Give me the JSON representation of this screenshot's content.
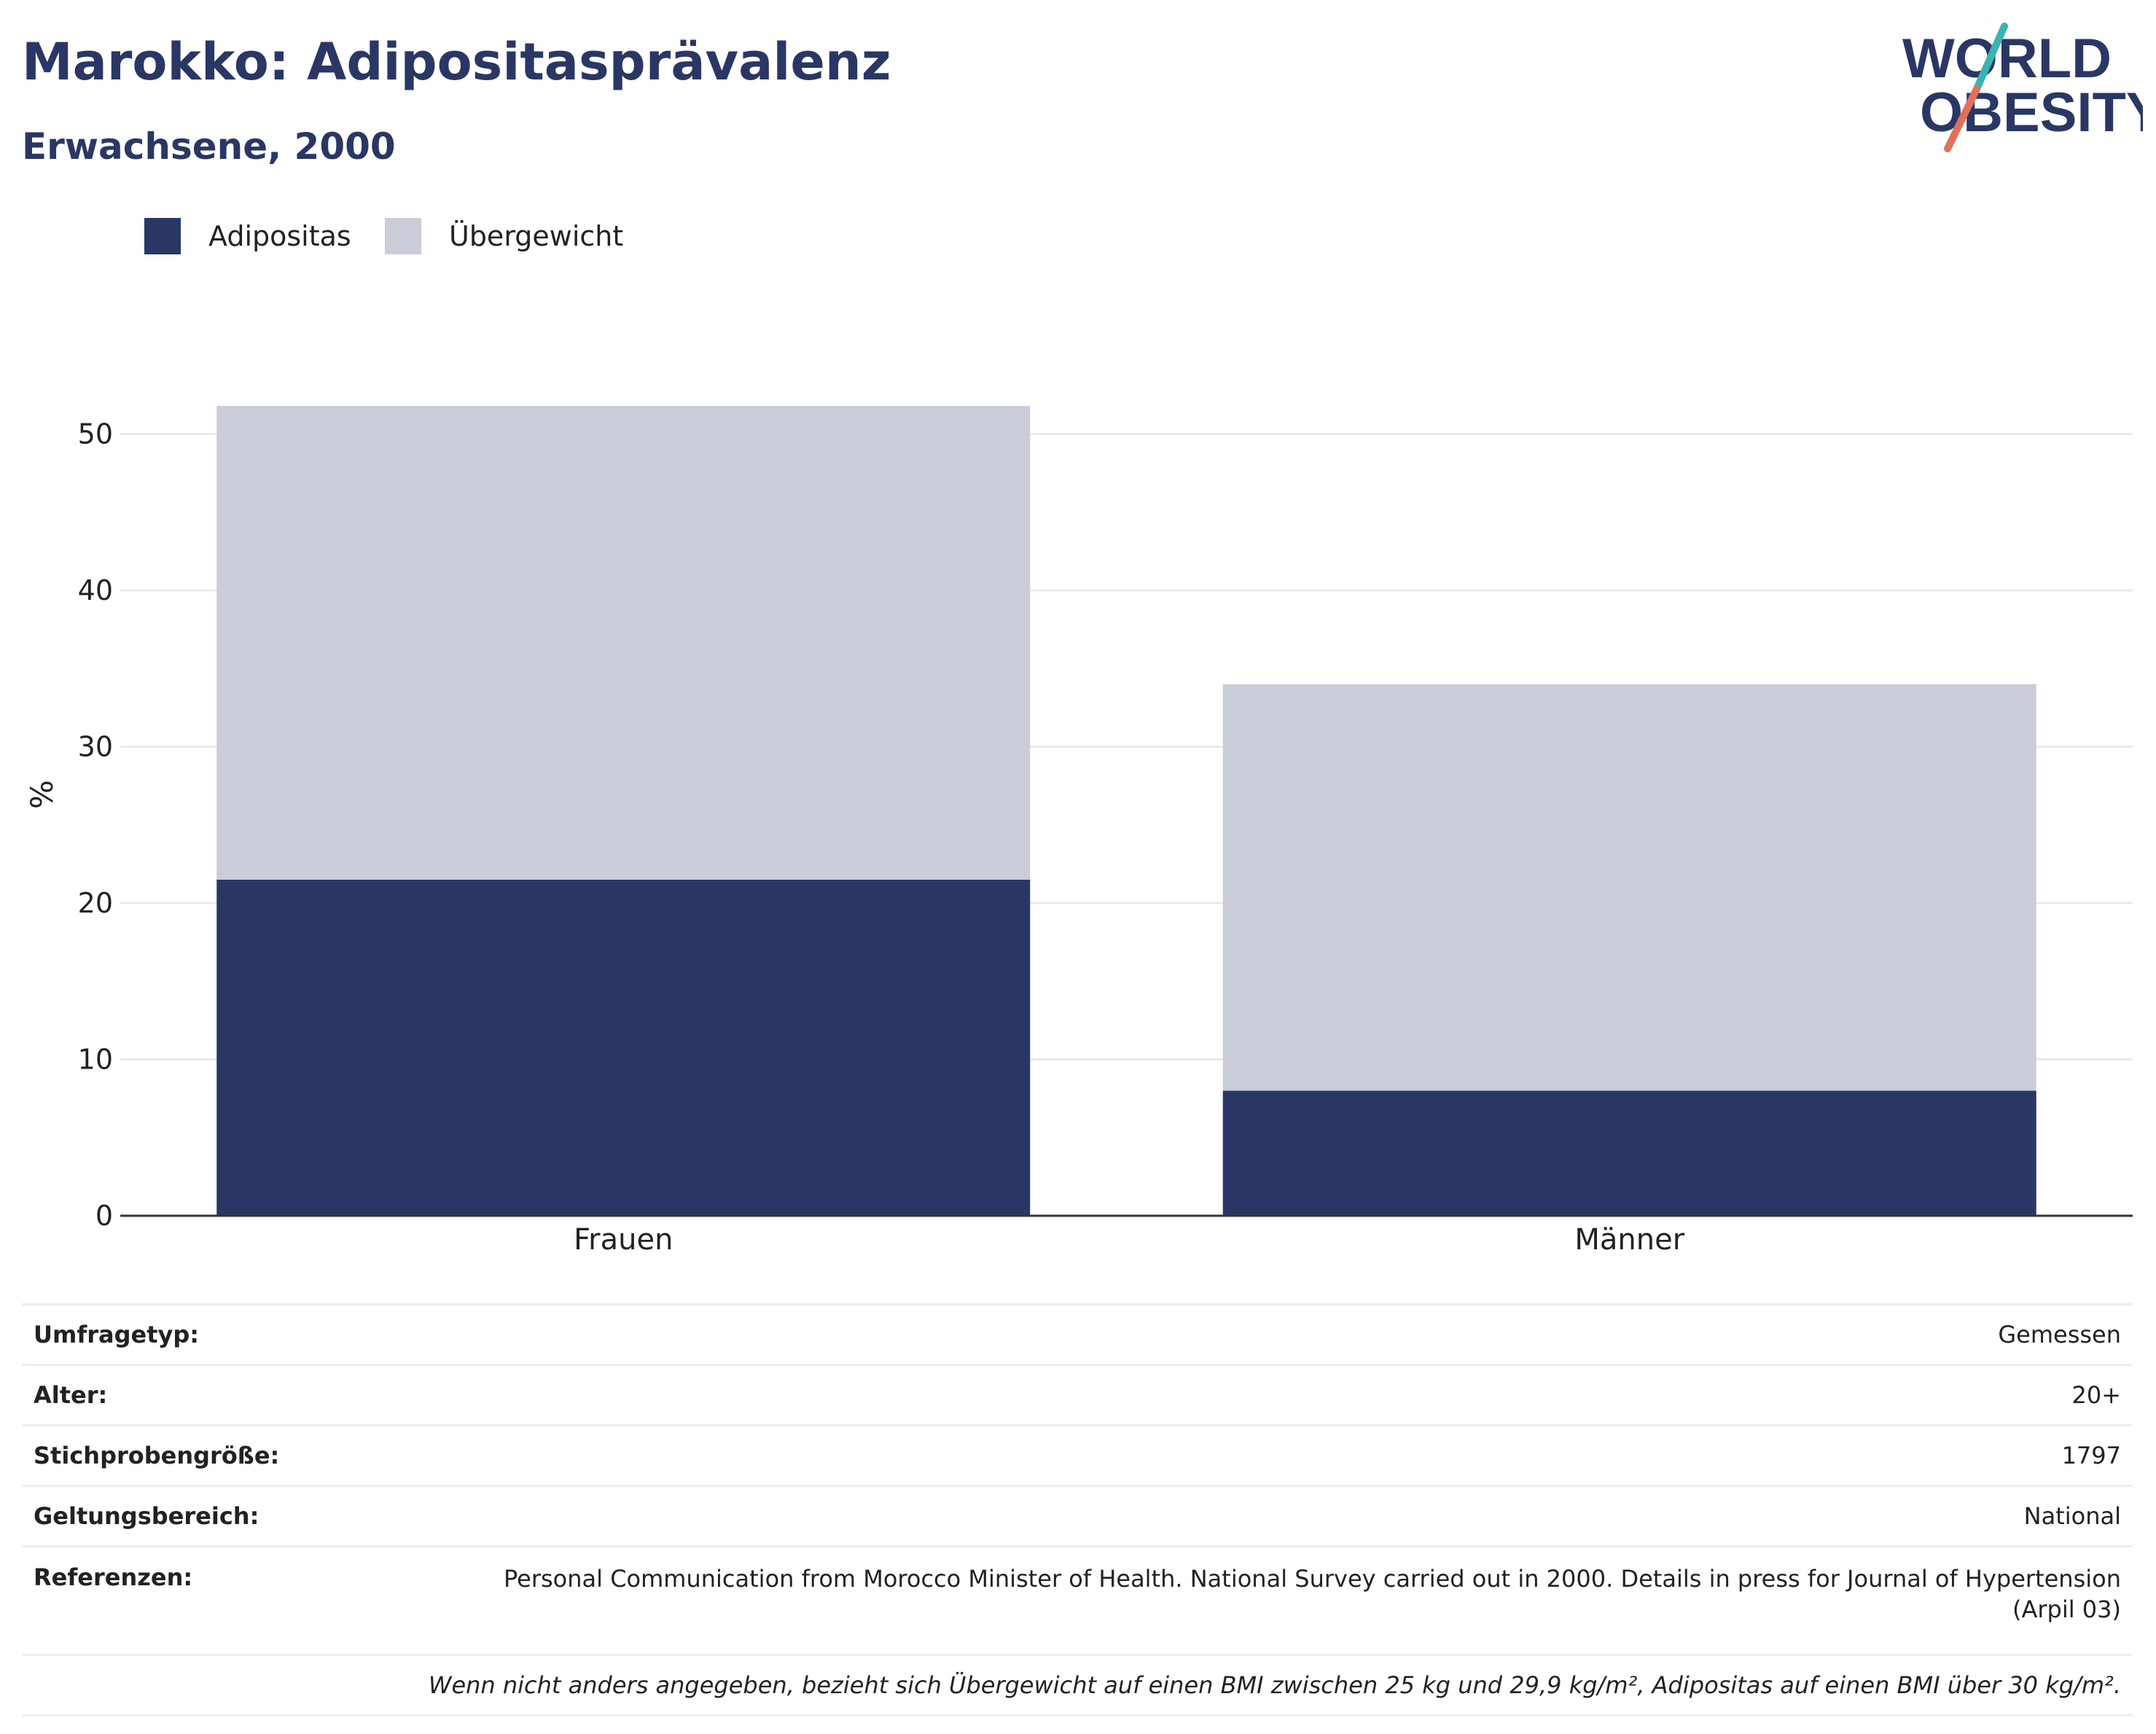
{
  "header": {
    "title": "Marokko: Adipositasprävalenz",
    "subtitle": "Erwachsene, 2000"
  },
  "logo": {
    "line1": "WORLD",
    "line2": "OBESITY"
  },
  "colors": {
    "obese": "#2a3764",
    "overweight": "#cacdd8",
    "title": "#2a3764",
    "logo_teal": "#3bb3b3",
    "logo_coral": "#e2705d"
  },
  "chart_data": {
    "type": "bar",
    "stacked": true,
    "categories": [
      "Frauen",
      "Männer"
    ],
    "series": [
      {
        "name": "Adipositas",
        "values": [
          21.5,
          8.0
        ],
        "color": "#2a3764"
      },
      {
        "name": "Übergewicht",
        "values": [
          30.3,
          26.0
        ],
        "color": "#cacdd8"
      }
    ],
    "ylabel": "%",
    "ylim": [
      0,
      55
    ],
    "yticks": [
      0,
      10,
      20,
      30,
      40,
      50
    ],
    "grid": true,
    "legend": "top-left"
  },
  "info": {
    "rows": [
      {
        "label": "Umfragetyp:",
        "value": "Gemessen"
      },
      {
        "label": "Alter:",
        "value": "20+"
      },
      {
        "label": "Stichprobengröße:",
        "value": "1797"
      },
      {
        "label": "Geltungsbereich:",
        "value": "National"
      },
      {
        "label": "Referenzen:",
        "value": "Personal Communication from Morocco Minister of Health. National Survey carried out in 2000. Details in press for Journal of Hypertension (Arpil 03)"
      }
    ],
    "footnote": "Wenn nicht anders angegeben, bezieht sich Übergewicht auf einen BMI zwischen 25 kg und 29,9 kg/m², Adipositas auf einen BMI über 30 kg/m²."
  }
}
